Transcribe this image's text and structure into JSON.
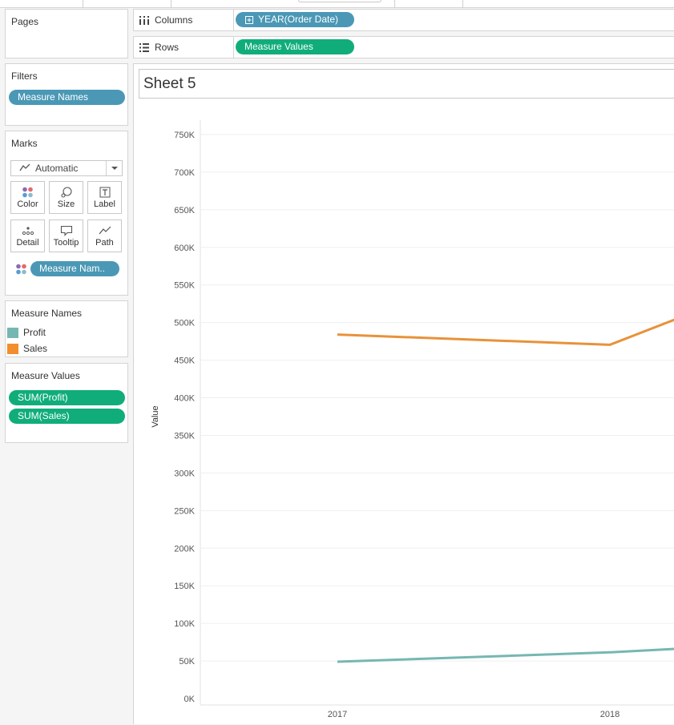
{
  "shelves": {
    "columns_label": "Columns",
    "rows_label": "Rows",
    "columns_pill": "YEAR(Order Date)",
    "rows_pill": "Measure Values"
  },
  "side": {
    "pages_title": "Pages",
    "filters_title": "Filters",
    "filters_pill": "Measure Names",
    "marks_title": "Marks",
    "marks_type": "Automatic",
    "mark_buttons": [
      "Color",
      "Size",
      "Label",
      "Detail",
      "Tooltip",
      "Path"
    ],
    "marks_color_pill": "Measure Nam..",
    "legend_title": "Measure Names",
    "legend": [
      {
        "name": "Profit",
        "color": "#76b7b2"
      },
      {
        "name": "Sales",
        "color": "#f28e2b"
      }
    ],
    "measure_values_title": "Measure Values",
    "measure_values_pills": [
      "SUM(Profit)",
      "SUM(Sales)"
    ]
  },
  "sheet": {
    "title": "Sheet 5"
  },
  "chart_data": {
    "type": "line",
    "categories": [
      "2017",
      "2018"
    ],
    "ylabel": "Value",
    "xlabel": "",
    "ylim": [
      0,
      750000
    ],
    "yticks": [
      "0K",
      "50K",
      "100K",
      "150K",
      "200K",
      "250K",
      "300K",
      "350K",
      "400K",
      "450K",
      "500K",
      "550K",
      "600K",
      "650K",
      "700K",
      "750K"
    ],
    "grid": true,
    "series": [
      {
        "name": "Profit",
        "color": "#76b7b2",
        "values": [
          49000,
          61500
        ],
        "continues_to": 66000
      },
      {
        "name": "Sales",
        "color": "#e8923a",
        "values": [
          484000,
          470500
        ],
        "continues_to": 504000
      }
    ]
  }
}
